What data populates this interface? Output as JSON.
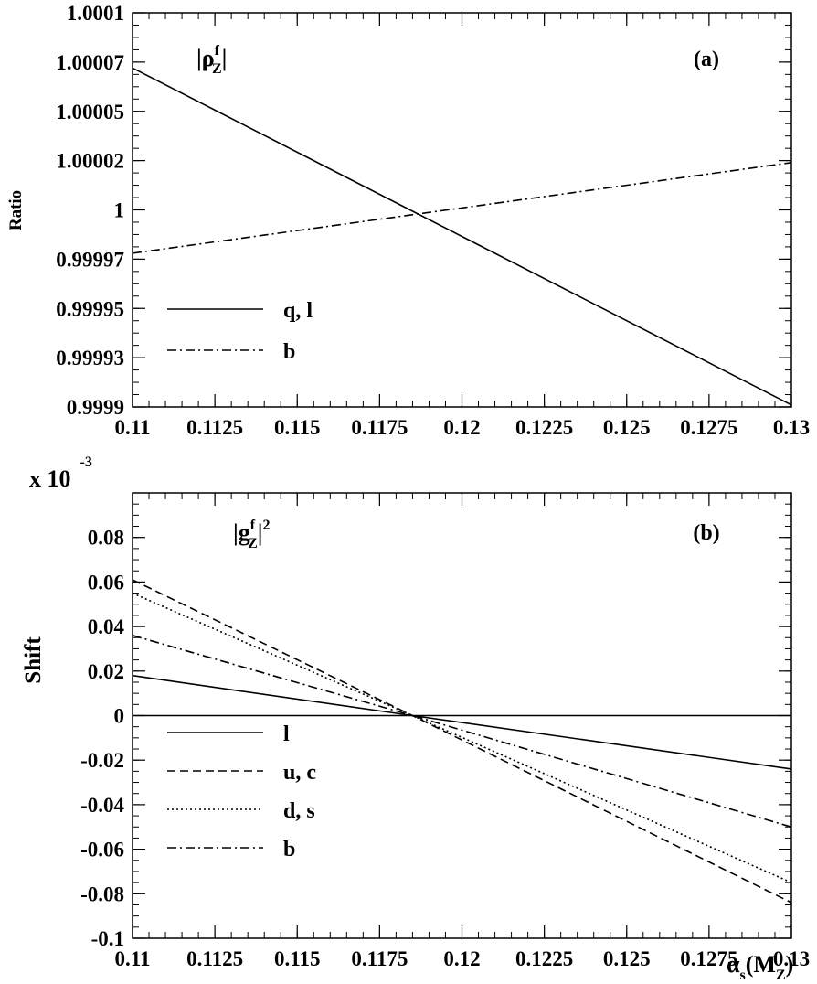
{
  "chart_data": [
    {
      "type": "line",
      "panel_label": "(a)",
      "annotation": {
        "main": "|ρ",
        "sup": "f",
        "sub": "Z",
        "close": "|"
      },
      "ylabel": "Ratio",
      "xlim": [
        0.11,
        0.13
      ],
      "ylim": [
        0.9999,
        1.0001
      ],
      "x_ticks": [
        "0.11",
        "0.1125",
        "0.115",
        "0.1175",
        "0.12",
        "0.1225",
        "0.125",
        "0.1275",
        "0.13"
      ],
      "x_tick_values": [
        0.11,
        0.1125,
        0.115,
        0.1175,
        0.12,
        0.1225,
        0.125,
        0.1275,
        0.13
      ],
      "y_ticks": [
        "0.9999",
        "0.99993",
        "0.99995",
        "0.99997",
        "1",
        "1.00002",
        "1.00005",
        "1.00007",
        "1.0001"
      ],
      "y_tick_values": [
        0.9999,
        0.999925,
        0.99995,
        0.999975,
        1.0,
        1.000025,
        1.00005,
        1.000075,
        1.0001
      ],
      "legend": "lower-left",
      "series": [
        {
          "name": "q, l",
          "style": "solid",
          "x": [
            0.11,
            0.13
          ],
          "y": [
            1.000072,
            0.999901
          ]
        },
        {
          "name": "b",
          "style": "dashdot",
          "x": [
            0.11,
            0.13
          ],
          "y": [
            0.999978,
            1.000024
          ]
        }
      ]
    },
    {
      "type": "line",
      "panel_label": "(b)",
      "annotation": {
        "main": "|g",
        "sup": "f",
        "sub": "Z",
        "close": "|",
        "power": "2"
      },
      "ylabel": "Shift",
      "yscale_label": {
        "base": "x 10",
        "exp": "-3"
      },
      "xlabel": {
        "main": "α",
        "sub": "s",
        "open": "(M",
        "sub2": "Z",
        "close": ")"
      },
      "xlim": [
        0.11,
        0.13
      ],
      "ylim": [
        -0.1,
        0.1
      ],
      "x_ticks": [
        "0.11",
        "0.1125",
        "0.115",
        "0.1175",
        "0.12",
        "0.1225",
        "0.125",
        "0.1275",
        "0.13"
      ],
      "x_tick_values": [
        0.11,
        0.1125,
        0.115,
        0.1175,
        0.12,
        0.1225,
        0.125,
        0.1275,
        0.13
      ],
      "y_ticks": [
        "-0.1",
        "-0.08",
        "-0.06",
        "-0.04",
        "-0.02",
        "0",
        "0.02",
        "0.04",
        "0.06",
        "0.08"
      ],
      "y_tick_values": [
        -0.1,
        -0.08,
        -0.06,
        -0.04,
        -0.02,
        0,
        0.02,
        0.04,
        0.06,
        0.08
      ],
      "zero_line": true,
      "legend": "lower-left",
      "series": [
        {
          "name": "l",
          "style": "solid",
          "x": [
            0.11,
            0.1185,
            0.13
          ],
          "y": [
            0.018,
            0.0,
            -0.024
          ]
        },
        {
          "name": "u, c",
          "style": "dashed",
          "x": [
            0.11,
            0.1185,
            0.13
          ],
          "y": [
            0.061,
            0.0,
            -0.084
          ]
        },
        {
          "name": "d, s",
          "style": "dotted",
          "x": [
            0.11,
            0.1185,
            0.13
          ],
          "y": [
            0.055,
            0.0,
            -0.075
          ]
        },
        {
          "name": "b",
          "style": "dashdot",
          "x": [
            0.11,
            0.1185,
            0.13
          ],
          "y": [
            0.036,
            0.0,
            -0.05
          ]
        }
      ]
    }
  ]
}
